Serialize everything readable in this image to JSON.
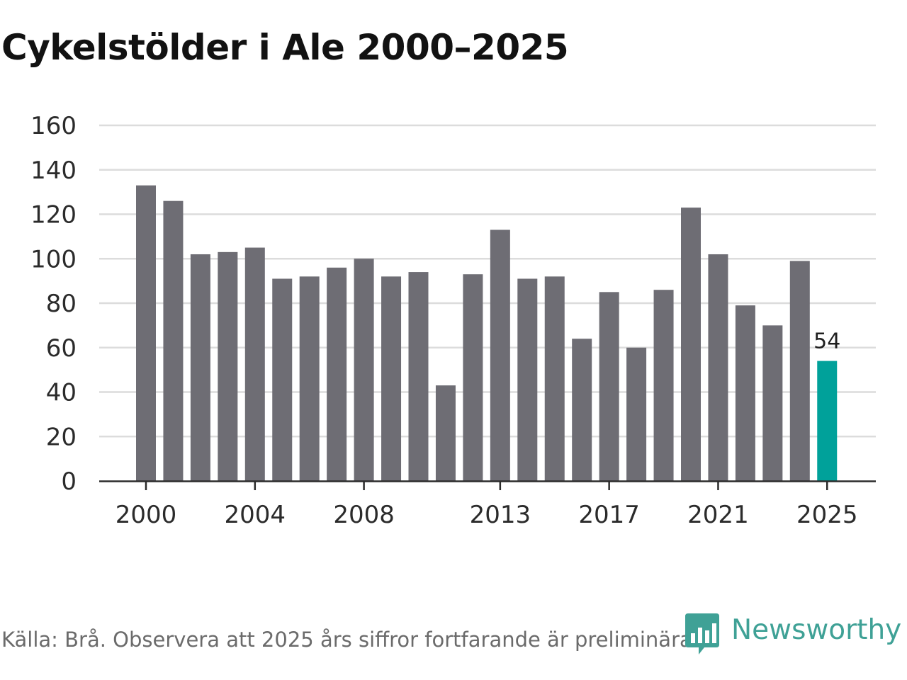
{
  "title": "Cykelstölder i Ale 2000–2025",
  "footer": {
    "source": "Källa: Brå. Observera att 2025 års siffror fortfarande är preliminära.",
    "brand": "Newsworthy",
    "brand_icon": "newsworthy-logo-icon"
  },
  "colors": {
    "bar": "#6e6d74",
    "highlight": "#00a19a",
    "grid": "#dcdcdc",
    "axis": "#2b2b2b",
    "brand": "#3fa196"
  },
  "chart_data": {
    "type": "bar",
    "title": "Cykelstölder i Ale 2000–2025",
    "xlabel": "",
    "ylabel": "",
    "ylim": [
      0,
      160
    ],
    "grid": true,
    "legend": "none",
    "yticks": [
      "0",
      "20",
      "40",
      "60",
      "80",
      "100",
      "120",
      "140",
      "160"
    ],
    "xticks": [
      "2000",
      "2004",
      "2008",
      "2013",
      "2017",
      "2021",
      "2025"
    ],
    "categories": [
      "2000",
      "2001",
      "2002",
      "2003",
      "2004",
      "2005",
      "2006",
      "2007",
      "2008",
      "2009",
      "2010",
      "2011",
      "2012",
      "2013",
      "2014",
      "2015",
      "2016",
      "2017",
      "2018",
      "2019",
      "2020",
      "2021",
      "2022",
      "2023",
      "2024",
      "2025"
    ],
    "values": [
      133,
      126,
      102,
      103,
      105,
      91,
      92,
      96,
      100,
      92,
      94,
      43,
      93,
      113,
      91,
      92,
      64,
      85,
      60,
      86,
      123,
      102,
      79,
      70,
      99,
      54
    ],
    "highlight": "2025",
    "annotations": [
      {
        "category": "2025",
        "text": "54"
      }
    ]
  }
}
